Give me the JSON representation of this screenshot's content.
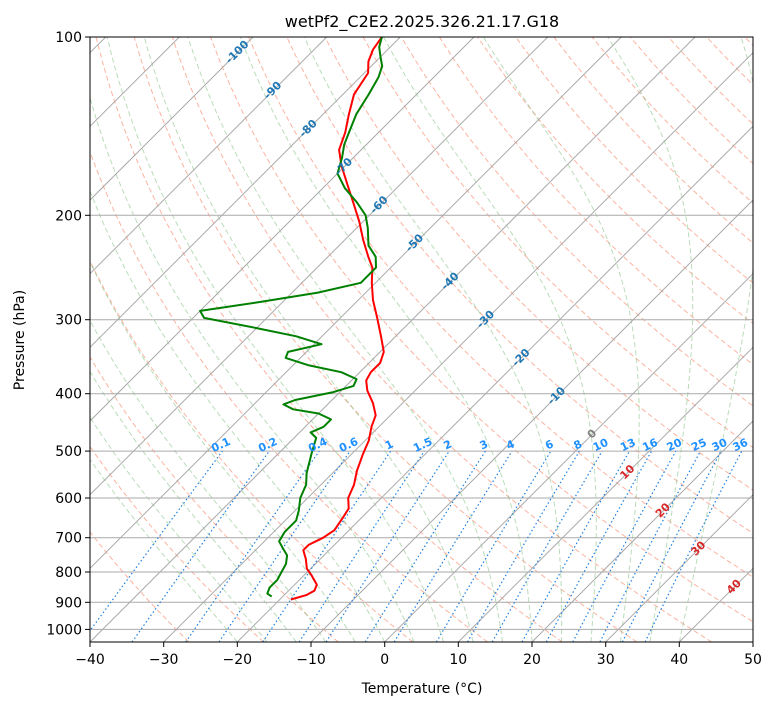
{
  "chart_data": {
    "type": "line",
    "chart_kind": "skew-T log-p diagram",
    "title": "wetPf2_C2E2.2025.326.21.17.G18",
    "xlabel": "Temperature (°C)",
    "ylabel": "Pressure (hPa)",
    "xlim": [
      -40,
      50
    ],
    "ylim": [
      1050,
      100
    ],
    "x_ticks": [
      "−40",
      "−30",
      "−20",
      "−10",
      "0",
      "10",
      "20",
      "30",
      "40",
      "50"
    ],
    "x_tick_values": [
      -40,
      -30,
      -20,
      -10,
      0,
      10,
      20,
      30,
      40,
      50
    ],
    "y_ticks": [
      "100",
      "200",
      "300",
      "400",
      "500",
      "600",
      "700",
      "800",
      "900",
      "1000"
    ],
    "y_tick_values": [
      100,
      200,
      300,
      400,
      500,
      600,
      700,
      800,
      900,
      1000
    ],
    "grid": true,
    "colors": {
      "temperature": "#ff0000",
      "dewpoint": "#008000",
      "isotherm": "#aaaaaa",
      "dry_adiabat": "#fa8060",
      "moist_adiabat": "#80c080",
      "mixing_ratio": "#2080e0",
      "isotherm_label_cold": "#1f77b4",
      "isotherm_label_warm": "#d62728",
      "isotherm_label_zero": "#7f7f7f",
      "mixing_ratio_label": "#1e90ff"
    },
    "series": [
      {
        "name": "Temperature",
        "points": [
          [
            -18.5,
            890
          ],
          [
            -17,
            875
          ],
          [
            -16.5,
            860
          ],
          [
            -17,
            840
          ],
          [
            -19,
            810
          ],
          [
            -20.5,
            790
          ],
          [
            -22,
            760
          ],
          [
            -23.5,
            735
          ],
          [
            -23.5,
            720
          ],
          [
            -22.5,
            700
          ],
          [
            -22,
            680
          ],
          [
            -22.5,
            650
          ],
          [
            -23,
            625
          ],
          [
            -24.5,
            600
          ],
          [
            -25.5,
            570
          ],
          [
            -27,
            540
          ],
          [
            -28.5,
            505
          ],
          [
            -29.5,
            480
          ],
          [
            -31,
            455
          ],
          [
            -32,
            435
          ],
          [
            -34,
            415
          ],
          [
            -36.5,
            395
          ],
          [
            -38,
            380
          ],
          [
            -38.5,
            368
          ],
          [
            -38.5,
            355
          ],
          [
            -39.5,
            340
          ],
          [
            -42,
            320
          ],
          [
            -45,
            298
          ],
          [
            -48,
            278
          ],
          [
            -50.5,
            260
          ],
          [
            -52.5,
            245
          ],
          [
            -54.5,
            235
          ],
          [
            -57.5,
            220
          ],
          [
            -60.5,
            205
          ],
          [
            -64,
            190
          ],
          [
            -67,
            178
          ],
          [
            -70.5,
            165
          ],
          [
            -73,
            155
          ],
          [
            -74.5,
            145
          ],
          [
            -76.5,
            135
          ],
          [
            -78.5,
            125
          ],
          [
            -79.5,
            115
          ],
          [
            -81,
            110
          ],
          [
            -82,
            105
          ],
          [
            -82.5,
            100
          ]
        ]
      },
      {
        "name": "Dewpoint",
        "points": [
          [
            -21.5,
            880
          ],
          [
            -22.5,
            870
          ],
          [
            -23,
            850
          ],
          [
            -23,
            825
          ],
          [
            -23.5,
            800
          ],
          [
            -24,
            775
          ],
          [
            -25,
            750
          ],
          [
            -26.5,
            730
          ],
          [
            -28,
            710
          ],
          [
            -28.5,
            685
          ],
          [
            -28.5,
            655
          ],
          [
            -29.5,
            630
          ],
          [
            -31,
            600
          ],
          [
            -32,
            570
          ],
          [
            -33.5,
            545
          ],
          [
            -35.5,
            505
          ],
          [
            -37,
            475
          ],
          [
            -38.5,
            465
          ],
          [
            -37.5,
            455
          ],
          [
            -37.5,
            442
          ],
          [
            -40,
            432
          ],
          [
            -44,
            425
          ],
          [
            -46,
            417
          ],
          [
            -45,
            410
          ],
          [
            -41,
            398
          ],
          [
            -39,
            388
          ],
          [
            -39.5,
            378
          ],
          [
            -42.5,
            368
          ],
          [
            -48,
            358
          ],
          [
            -52,
            348
          ],
          [
            -52.5,
            340
          ],
          [
            -49,
            330
          ],
          [
            -53.5,
            320
          ],
          [
            -60,
            310
          ],
          [
            -68.5,
            298
          ],
          [
            -70,
            290
          ],
          [
            -63,
            280
          ],
          [
            -56.5,
            270
          ],
          [
            -52,
            260
          ],
          [
            -52,
            245
          ],
          [
            -53.5,
            235
          ],
          [
            -56,
            225
          ],
          [
            -58.5,
            210
          ],
          [
            -60.5,
            200
          ],
          [
            -63.5,
            190
          ],
          [
            -67,
            180
          ],
          [
            -70,
            170
          ],
          [
            -71.5,
            160
          ],
          [
            -73,
            152
          ],
          [
            -74,
            145
          ],
          [
            -75.5,
            135
          ],
          [
            -76.5,
            125
          ],
          [
            -77.5,
            117
          ],
          [
            -78.5,
            112
          ],
          [
            -80,
            108
          ],
          [
            -81.5,
            104
          ],
          [
            -82.5,
            100
          ]
        ]
      }
    ],
    "isotherm_labels": [
      "-100",
      "-90",
      "-80",
      "-70",
      "-60",
      "-50",
      "-40",
      "-30",
      "-20",
      "-10",
      "0",
      "10",
      "20",
      "30",
      "40"
    ],
    "isotherm_label_values": [
      -100,
      -90,
      -80,
      -70,
      -60,
      -50,
      -40,
      -30,
      -20,
      -10,
      0,
      10,
      20,
      30,
      40
    ],
    "mixing_ratio_labels": [
      "0.1",
      "0.2",
      "0.4",
      "0.6",
      "1",
      "1.5",
      "2",
      "3",
      "4",
      "6",
      "8",
      "10",
      "13",
      "16",
      "20",
      "25",
      "30",
      "36"
    ],
    "mixing_ratio_values": [
      0.1,
      0.2,
      0.4,
      0.6,
      1,
      1.5,
      2,
      3,
      4,
      6,
      8,
      10,
      13,
      16,
      20,
      25,
      30,
      36
    ]
  }
}
